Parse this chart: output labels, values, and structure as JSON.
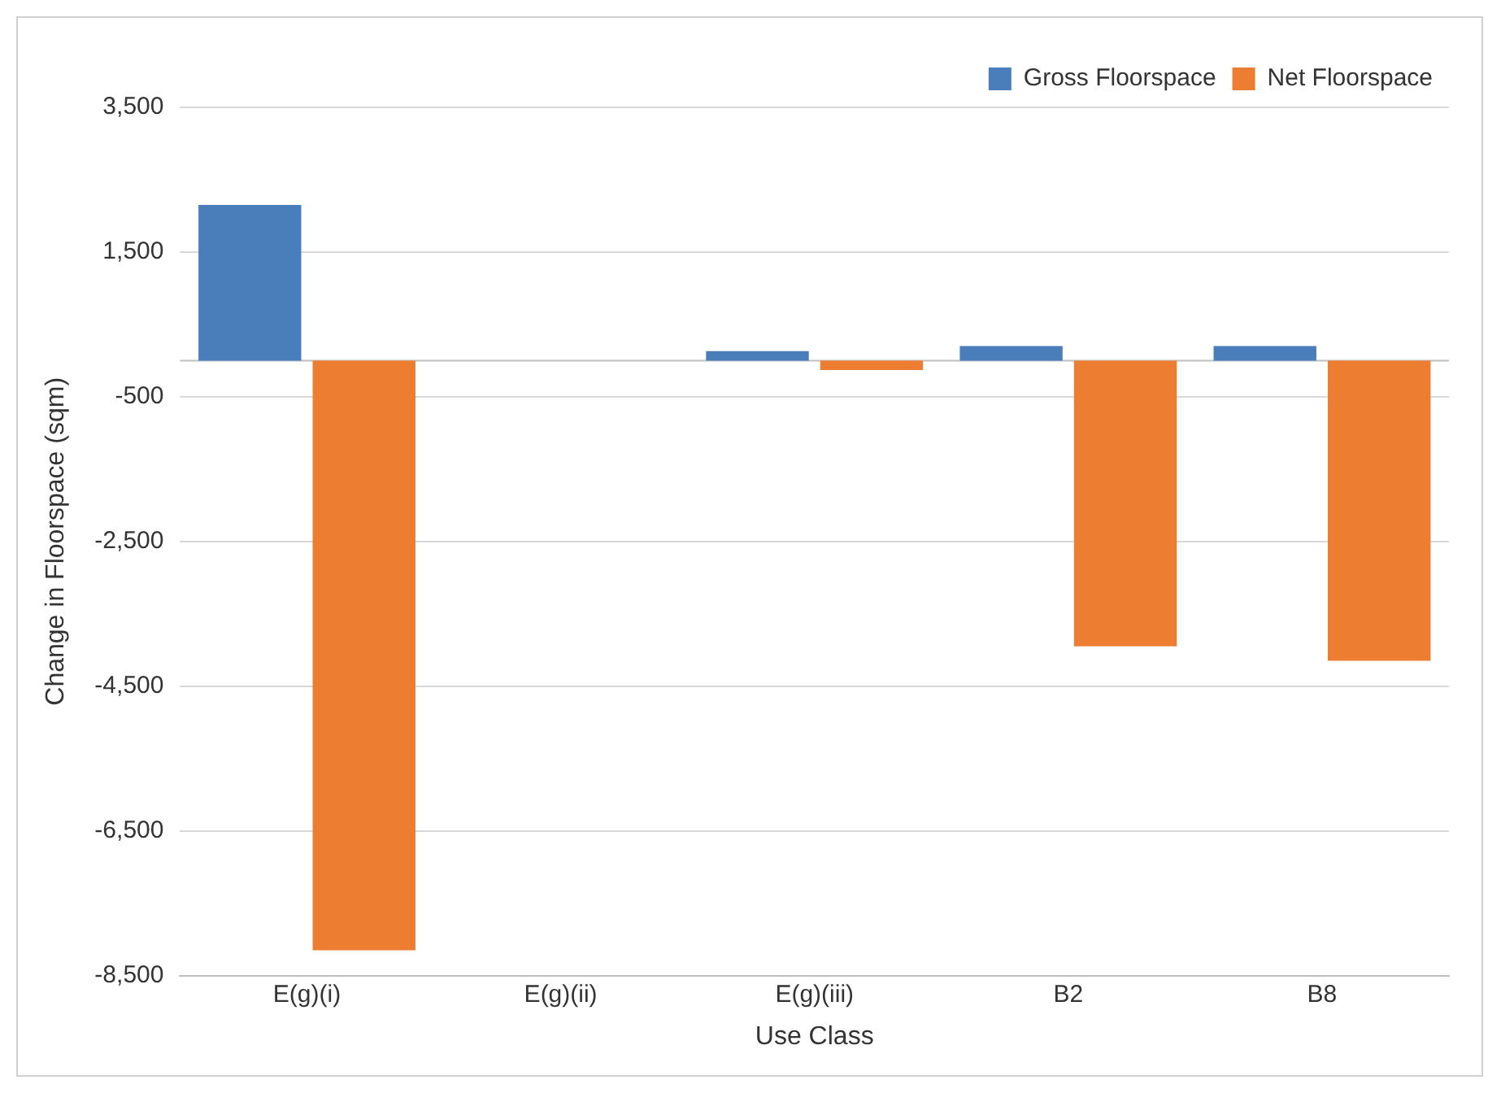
{
  "chart_data": {
    "type": "bar",
    "xlabel": "Use Class",
    "ylabel": "Change in Floorspace (sqm)",
    "categories": [
      "E(g)(i)",
      "E(g)(ii)",
      "E(g)(iii)",
      "B2",
      "B8"
    ],
    "series": [
      {
        "name": "Gross Floorspace",
        "color": "#4a7ebb",
        "values": [
          2150,
          0,
          130,
          200,
          200
        ]
      },
      {
        "name": "Net Floorspace",
        "color": "#ed7d31",
        "values": [
          -8150,
          0,
          -130,
          -3950,
          -4150
        ]
      }
    ],
    "ylim": [
      -8500,
      3500
    ],
    "yticks": [
      {
        "value": 3500,
        "label": "3,500"
      },
      {
        "value": 1500,
        "label": "1,500"
      },
      {
        "value": -500,
        "label": "-500"
      },
      {
        "value": -2500,
        "label": "-2,500"
      },
      {
        "value": -4500,
        "label": "-4,500"
      },
      {
        "value": -6500,
        "label": "-6,500"
      },
      {
        "value": -8500,
        "label": "-8,500"
      }
    ],
    "grid": "y",
    "legend": "top right"
  }
}
